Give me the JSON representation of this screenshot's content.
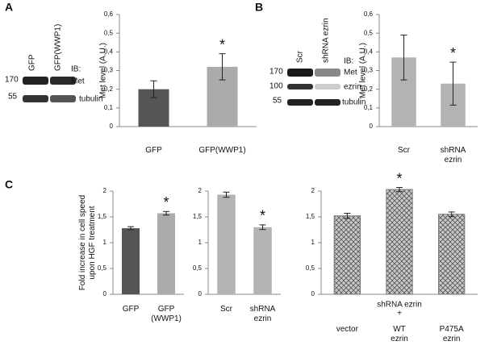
{
  "panel_labels": [
    "A",
    "B",
    "C"
  ],
  "blot_a": {
    "lanes": [
      "GFP",
      "GFP(WWP1)"
    ],
    "ib": "IB:",
    "bands": [
      "Met",
      "tubulin"
    ],
    "markers": [
      "170",
      "55"
    ]
  },
  "blot_b": {
    "lanes": [
      "Scr",
      "shRNA ezrin"
    ],
    "ib": "IB:",
    "bands": [
      "Met",
      "ezrin",
      "tubulin"
    ],
    "markers": [
      "170",
      "100",
      "55"
    ]
  },
  "chart_data": [
    {
      "type": "bar",
      "y_label": "Met level (A.U.)",
      "categories": [
        "GFP",
        "GFP(WWP1)"
      ],
      "values": [
        0.2,
        0.32
      ],
      "errors": [
        0.045,
        0.07
      ],
      "colors": [
        "#555555",
        "#ababab"
      ],
      "ylim": [
        0,
        0.6
      ],
      "yticks": [
        0,
        {
          "value": 0.1,
          "label": "0,1"
        },
        {
          "value": 0.2,
          "label": "0,2"
        },
        {
          "value": 0.3,
          "label": "0,3"
        },
        {
          "value": 0.4,
          "label": "0,4"
        },
        {
          "value": 0.5,
          "label": "0,5"
        },
        {
          "value": 0.6,
          "label": "0,6"
        }
      ],
      "annotations": [
        {
          "category": "GFP(WWP1)",
          "text": "*"
        }
      ]
    },
    {
      "type": "bar",
      "y_label": "Met level (A.U.)",
      "categories": [
        "Scr",
        "shRNA ezrin"
      ],
      "values": [
        0.37,
        0.23
      ],
      "errors": [
        0.12,
        0.115
      ],
      "colors": [
        "#b3b3b3",
        "#b3b3b3"
      ],
      "ylim": [
        0,
        0.6
      ],
      "yticks": [
        0,
        {
          "value": 0.1,
          "label": "0,1"
        },
        {
          "value": 0.2,
          "label": "0,2"
        },
        {
          "value": 0.3,
          "label": "0,3"
        },
        {
          "value": 0.4,
          "label": "0,4"
        },
        {
          "value": 0.5,
          "label": "0,5"
        },
        {
          "value": 0.6,
          "label": "0,6"
        }
      ],
      "annotations": [
        {
          "category": "shRNA ezrin",
          "text": "*"
        }
      ]
    },
    {
      "type": "bar",
      "y_label": "Fold increase in cell speed upon HGF treatment",
      "categories": [
        "GFP",
        "GFP (WWP1)"
      ],
      "values": [
        1.28,
        1.57
      ],
      "errors": [
        0.03,
        0.035
      ],
      "colors": [
        "#555555",
        "#ababab"
      ],
      "ylim": [
        0,
        2
      ],
      "yticks": [
        0,
        {
          "value": 0.5,
          "label": "0,5"
        },
        1,
        {
          "value": 1.5,
          "label": "1,5"
        },
        2
      ],
      "annotations": [
        {
          "category": "GFP (WWP1)",
          "text": "*"
        }
      ]
    },
    {
      "type": "bar",
      "categories": [
        "Scr",
        "shRNA ezrin"
      ],
      "values": [
        1.93,
        1.3
      ],
      "errors": [
        0.05,
        0.045
      ],
      "colors": [
        "#b3b3b3",
        "#b3b3b3"
      ],
      "ylim": [
        0,
        2
      ],
      "yticks": [
        0,
        {
          "value": 0.5,
          "label": "0,5"
        },
        1,
        {
          "value": 1.5,
          "label": "1,5"
        },
        2
      ],
      "annotations": [
        {
          "category": "shRNA ezrin",
          "text": "*"
        }
      ]
    },
    {
      "type": "bar",
      "group_label": [
        "shRNA ezrin",
        "+"
      ],
      "categories": [
        "vector",
        "WT ezrin",
        "P475A ezrin"
      ],
      "values": [
        1.52,
        2.03,
        1.55
      ],
      "errors": [
        0.05,
        0.04,
        0.045
      ],
      "colors": [
        "crosshatch",
        "crosshatch",
        "crosshatch"
      ],
      "ylim": [
        0,
        2
      ],
      "yticks": [
        0,
        {
          "value": 0.5,
          "label": "0,5"
        },
        1,
        {
          "value": 1.5,
          "label": "1,5"
        },
        2
      ],
      "annotations": [
        {
          "category": "WT ezrin",
          "text": "*"
        }
      ]
    }
  ]
}
